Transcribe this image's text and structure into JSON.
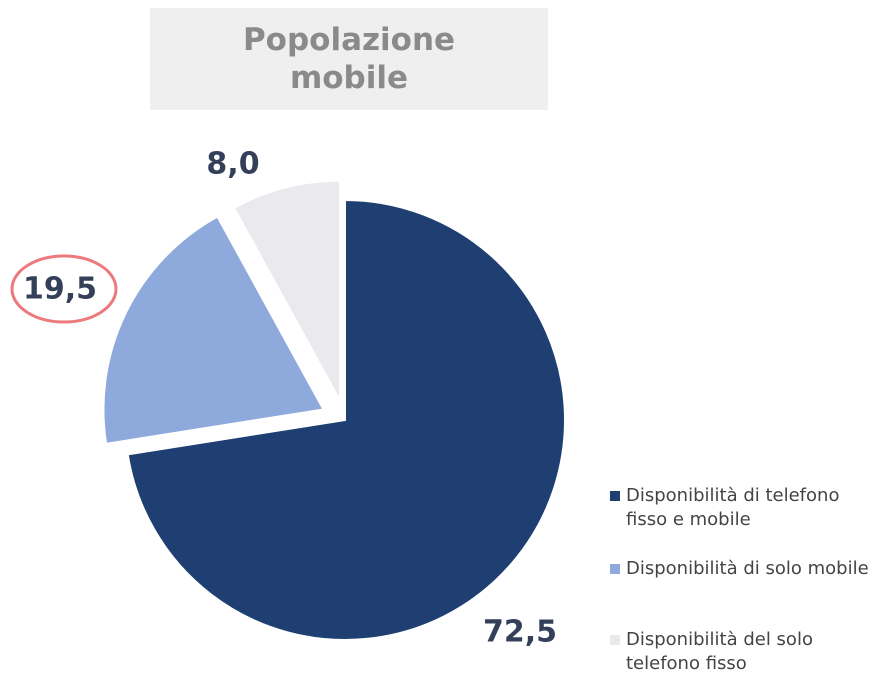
{
  "chart_data": {
    "type": "pie",
    "title": "Popolazione mobile",
    "categories": [
      "Disponibilità di telefono fisso e mobile",
      "Disponibilità di solo mobile",
      "Disponibilità del solo telefono fisso"
    ],
    "values": [
      72.5,
      19.5,
      8.0
    ],
    "value_labels": [
      "72,5",
      "19,5",
      "8,0"
    ],
    "colors": [
      "#1f3f73",
      "#8ea9db",
      "#e9e9ee"
    ],
    "legend": "right"
  }
}
